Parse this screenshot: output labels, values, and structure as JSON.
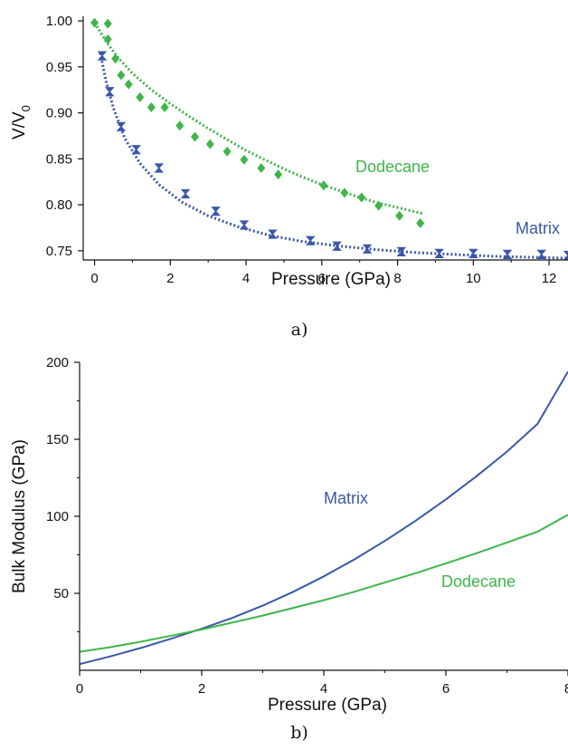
{
  "colors": {
    "dodecane": "#3fb54a",
    "matrix": "#3a57a8",
    "axis": "#111111"
  },
  "chart_data": [
    {
      "type": "scatter",
      "caption": "a)",
      "xlabel": "Pressure (GPa)",
      "ylabel_main": "V/V",
      "ylabel_sub": "0",
      "xlim": [
        -0.3,
        12.5
      ],
      "ylim": [
        0.74,
        1.005
      ],
      "xticks": [
        0,
        2,
        4,
        6,
        8,
        10,
        12
      ],
      "yticks": [
        "0.75",
        "0.80",
        "0.85",
        "0.90",
        "0.95",
        "1.00"
      ],
      "grid": false,
      "series": [
        {
          "name": "Dodecane",
          "color": "#3fb54a",
          "marker": "diamond",
          "x": [
            0.0,
            0.35,
            0.35,
            0.55,
            0.7,
            0.9,
            1.2,
            1.5,
            1.85,
            2.25,
            2.65,
            3.05,
            3.5,
            3.95,
            4.4,
            4.85,
            6.05,
            6.6,
            7.05,
            7.5,
            8.05,
            8.6
          ],
          "y": [
            0.998,
            0.997,
            0.98,
            0.959,
            0.941,
            0.931,
            0.917,
            0.906,
            0.906,
            0.886,
            0.874,
            0.866,
            0.858,
            0.849,
            0.84,
            0.833,
            0.821,
            0.813,
            0.808,
            0.799,
            0.788,
            0.78
          ],
          "fit_x": [
            0.0,
            0.3,
            0.6,
            1.0,
            1.5,
            2.0,
            2.5,
            3.0,
            3.5,
            4.0,
            4.5,
            5.0,
            5.5,
            6.0,
            6.5,
            7.0,
            7.5,
            8.0,
            8.7
          ],
          "fit_y": [
            0.998,
            0.978,
            0.961,
            0.943,
            0.925,
            0.91,
            0.896,
            0.883,
            0.871,
            0.859,
            0.849,
            0.839,
            0.83,
            0.822,
            0.815,
            0.808,
            0.802,
            0.797,
            0.79
          ]
        },
        {
          "name": "Matrix",
          "color": "#3a57a8",
          "marker": "hourglass",
          "x": [
            0.2,
            0.4,
            0.7,
            1.1,
            1.7,
            2.4,
            3.2,
            3.95,
            4.7,
            5.7,
            6.4,
            7.2,
            8.1,
            9.1,
            10.0,
            10.9,
            11.8,
            12.5
          ],
          "y": [
            0.962,
            0.923,
            0.885,
            0.86,
            0.84,
            0.812,
            0.793,
            0.778,
            0.768,
            0.761,
            0.755,
            0.752,
            0.749,
            0.747,
            0.747,
            0.746,
            0.746,
            0.745
          ],
          "fit_x": [
            0.15,
            0.3,
            0.5,
            0.8,
            1.2,
            1.7,
            2.3,
            3.0,
            3.8,
            4.6,
            5.5,
            6.5,
            7.5,
            8.5,
            9.5,
            10.5,
            11.5,
            12.5
          ],
          "fit_y": [
            0.965,
            0.935,
            0.905,
            0.872,
            0.845,
            0.822,
            0.803,
            0.788,
            0.776,
            0.767,
            0.76,
            0.755,
            0.751,
            0.748,
            0.746,
            0.744,
            0.743,
            0.742
          ]
        }
      ]
    },
    {
      "type": "line",
      "caption": "b)",
      "xlabel": "Pressure (GPa)",
      "ylabel": "Bulk Modulus (GPa)",
      "xlim": [
        0,
        8
      ],
      "ylim": [
        0,
        200
      ],
      "xticks": [
        "0",
        "2",
        "4",
        "6",
        "8"
      ],
      "yticks": [
        "50",
        "100",
        "150",
        "200"
      ],
      "grid": false,
      "series": [
        {
          "name": "Matrix",
          "color": "#3a57a8",
          "x": [
            0,
            0.5,
            1.0,
            1.5,
            2.0,
            2.5,
            3.0,
            3.5,
            4.0,
            4.5,
            5.0,
            5.5,
            6.0,
            6.5,
            7.0,
            7.5,
            8.0
          ],
          "y": [
            4,
            9,
            14.5,
            20.5,
            27,
            34,
            42,
            51,
            61,
            72,
            84,
            97,
            111,
            126,
            142,
            160,
            194
          ]
        },
        {
          "name": "Dodecane",
          "color": "#3fb54a",
          "x": [
            0,
            0.5,
            1.0,
            1.5,
            2.0,
            2.5,
            3.0,
            3.5,
            4.0,
            4.5,
            5.0,
            5.5,
            6.0,
            6.5,
            7.0,
            7.5,
            8.0
          ],
          "y": [
            12,
            15,
            18.5,
            22.5,
            26.5,
            31,
            35.5,
            40.5,
            45.5,
            51,
            57,
            63,
            69.5,
            76,
            83,
            90,
            101
          ]
        }
      ]
    }
  ]
}
